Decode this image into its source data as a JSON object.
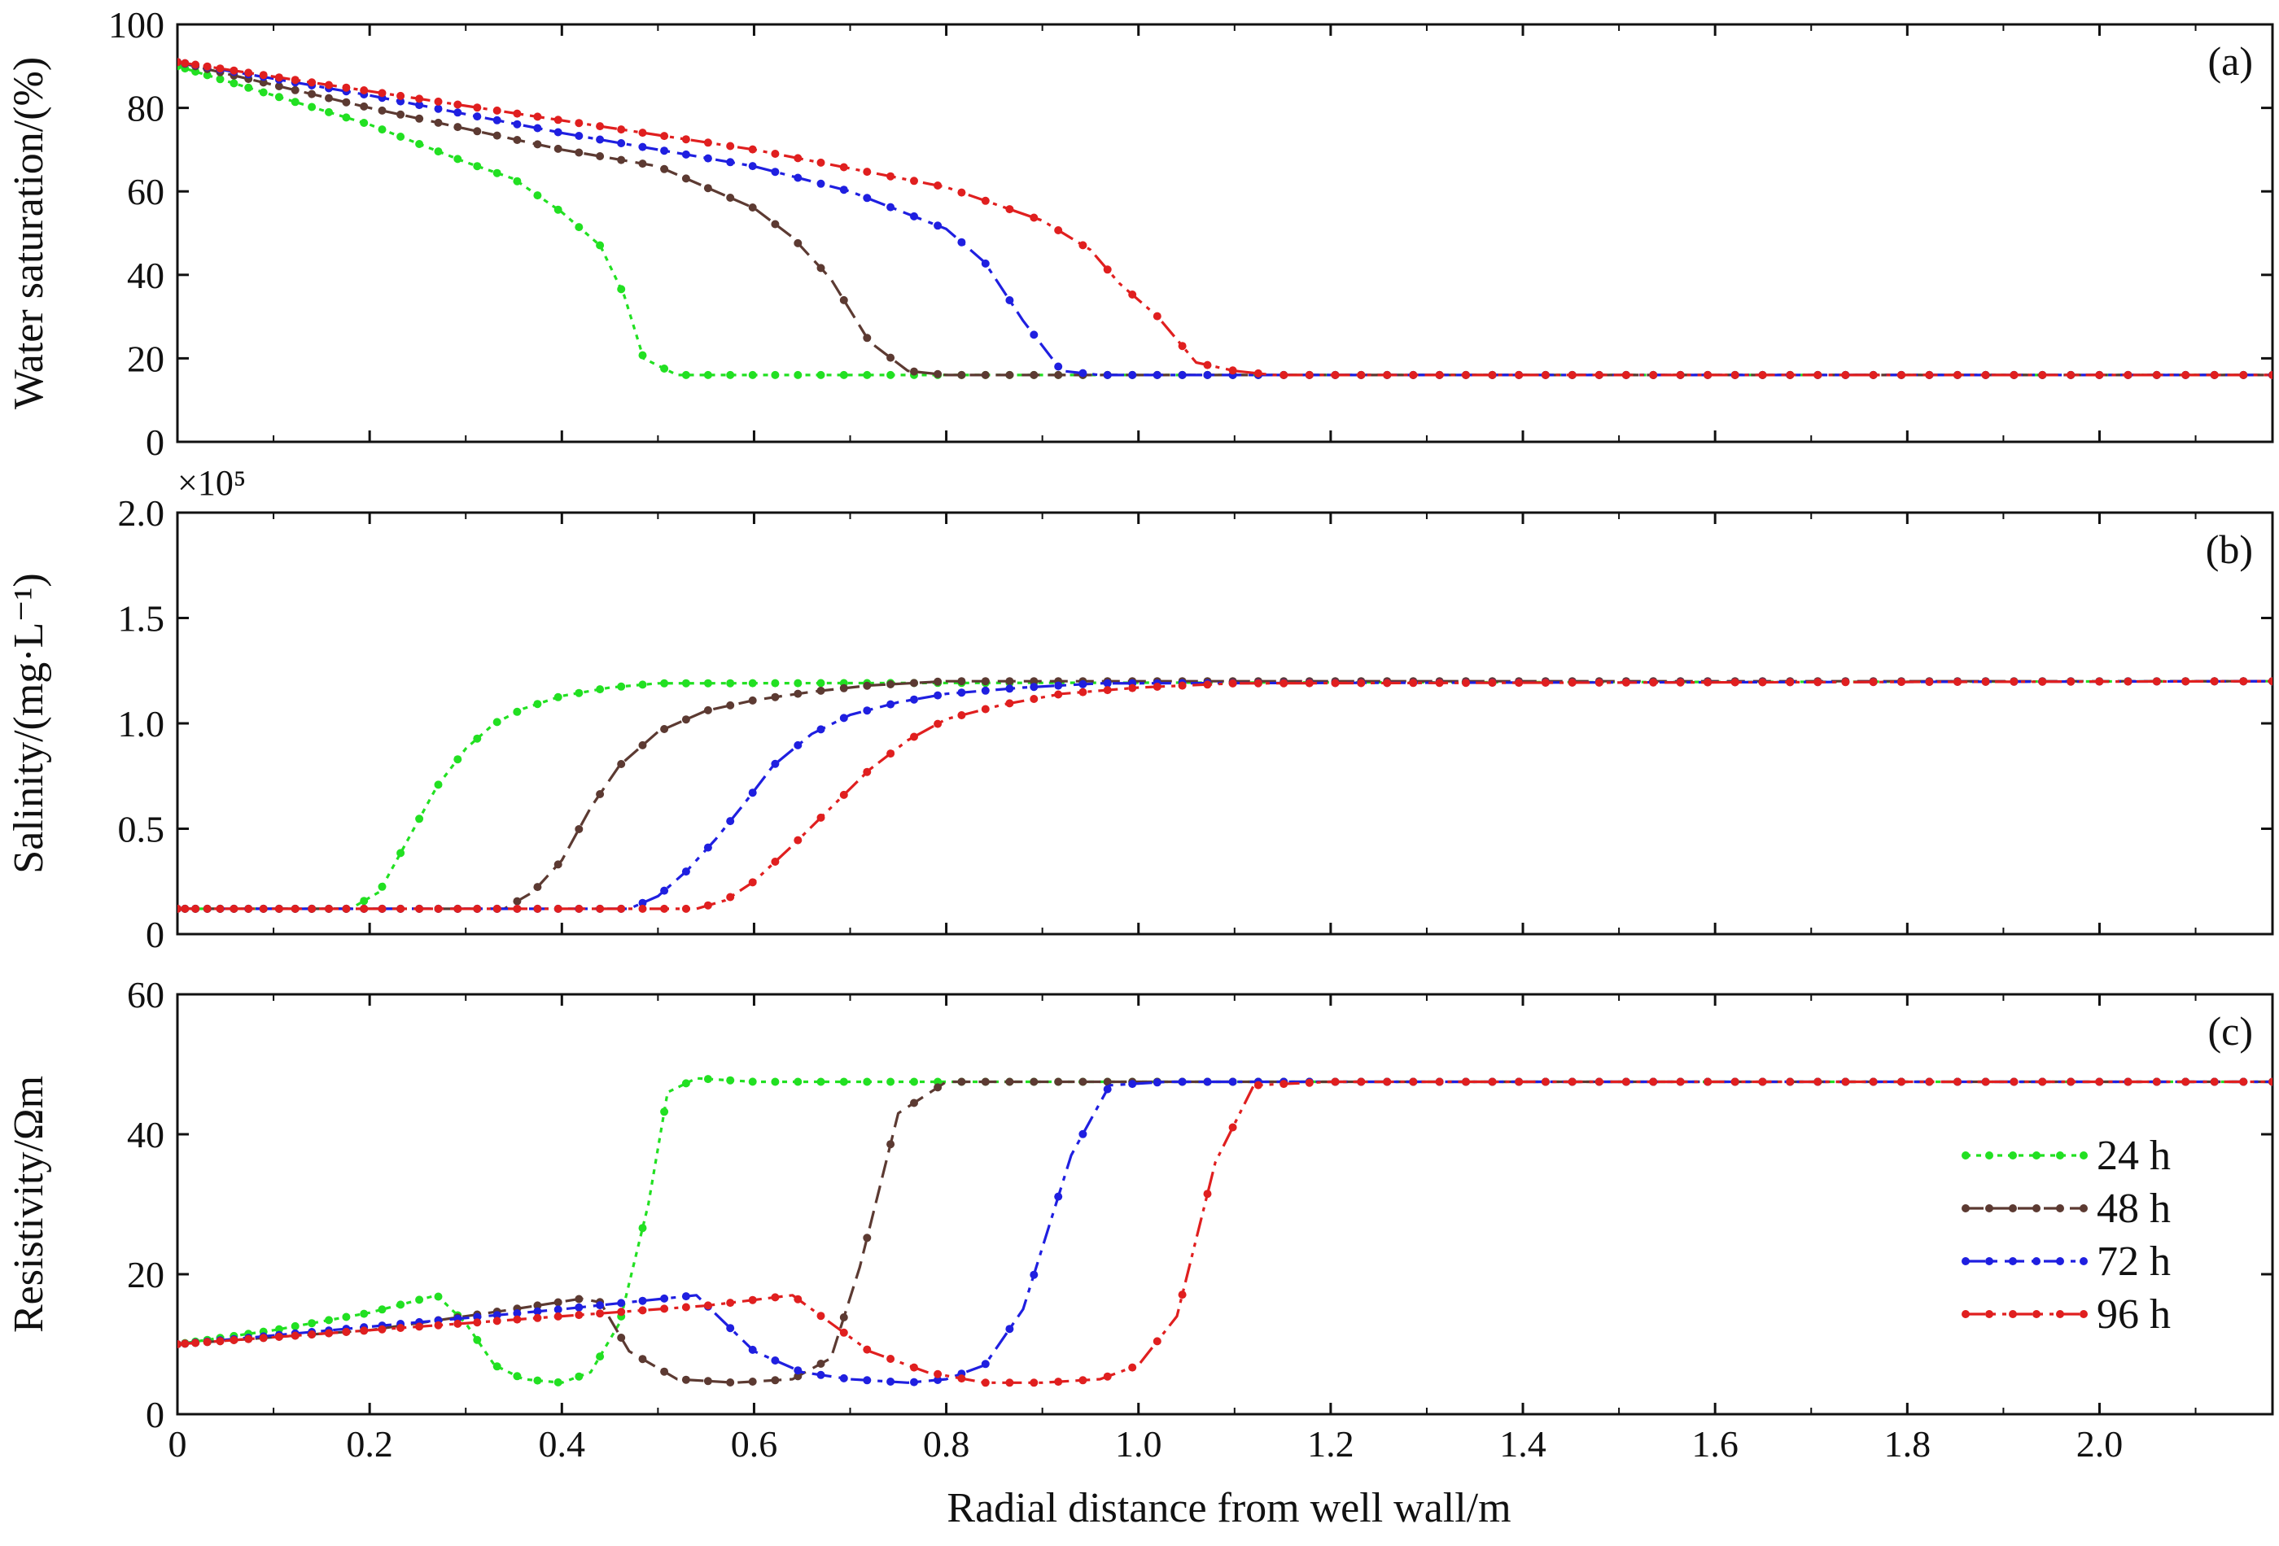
{
  "chart_data": {
    "type": "line",
    "xlabel": "Radial distance from well wall/m",
    "xlim": [
      0,
      2.18
    ],
    "xticks": [
      0,
      0.2,
      0.4,
      0.6,
      0.8,
      1.0,
      1.2,
      1.4,
      1.6,
      1.8,
      2.0
    ],
    "xtick_labels": [
      "0",
      "0.2",
      "0.4",
      "0.6",
      "0.8",
      "1.0",
      "1.2",
      "1.4",
      "1.6",
      "1.8",
      "2.0"
    ],
    "legend": {
      "placement": "lower-right of panel (c)",
      "entries": [
        {
          "label": "24 h",
          "color": "#22e022",
          "dash": "dotted"
        },
        {
          "label": "48 h",
          "color": "#5c3a32",
          "dash": "dashed"
        },
        {
          "label": "72 h",
          "color": "#1f1fe0",
          "dash": "dash-dot"
        },
        {
          "label": "96 h",
          "color": "#e01f1f",
          "dash": "dash-dot-dot"
        }
      ]
    },
    "panels": [
      {
        "id": "a",
        "tag": "(a)",
        "ylabel": "Water saturation/(%)",
        "ylim": [
          0,
          100
        ],
        "yticks": [
          0,
          20,
          40,
          60,
          80,
          100
        ],
        "ytick_labels": [
          "0",
          "20",
          "40",
          "60",
          "80",
          "100"
        ],
        "scale_note": "",
        "series": [
          {
            "name": "24 h",
            "x": [
              0,
              0.1,
              0.2,
              0.3,
              0.35,
              0.4,
              0.44,
              0.465,
              0.485,
              0.52,
              2.18
            ],
            "y": [
              90,
              83,
              76,
              67,
              63,
              55,
              47,
              35,
              20,
              16,
              16
            ]
          },
          {
            "name": "48 h",
            "x": [
              0,
              0.2,
              0.4,
              0.5,
              0.6,
              0.64,
              0.68,
              0.72,
              0.76,
              0.8,
              2.18
            ],
            "y": [
              91,
              80,
              70,
              66,
              56,
              49,
              39,
              24,
              17,
              16,
              16
            ]
          },
          {
            "name": "72 h",
            "x": [
              0,
              0.2,
              0.4,
              0.6,
              0.7,
              0.8,
              0.84,
              0.88,
              0.92,
              0.96,
              1.0,
              2.18
            ],
            "y": [
              91,
              83,
              74,
              66,
              60,
              51,
              43,
              29,
              17,
              16,
              16,
              16
            ]
          },
          {
            "name": "96 h",
            "x": [
              0,
              0.2,
              0.4,
              0.6,
              0.8,
              0.9,
              0.95,
              0.98,
              1.02,
              1.06,
              1.1,
              1.14,
              2.18
            ],
            "y": [
              91,
              84,
              77,
              70,
              61,
              53,
              46,
              38,
              30,
              19,
              17,
              16,
              16
            ]
          }
        ]
      },
      {
        "id": "b",
        "tag": "(b)",
        "ylabel": "Salinity/(mg·L⁻¹)",
        "ylim": [
          0,
          2.0
        ],
        "yticks": [
          0,
          0.5,
          1.0,
          1.5,
          2.0
        ],
        "ytick_labels": [
          "0",
          "0.5",
          "1.0",
          "1.5",
          "2.0"
        ],
        "scale_note": "×10⁵",
        "series": [
          {
            "name": "24 h",
            "x": [
              0,
              0.18,
              0.21,
              0.24,
              0.27,
              0.3,
              0.33,
              0.36,
              0.4,
              0.45,
              0.5,
              2.18
            ],
            "y": [
              0.12,
              0.12,
              0.2,
              0.45,
              0.7,
              0.88,
              1.0,
              1.07,
              1.13,
              1.17,
              1.19,
              1.2
            ]
          },
          {
            "name": "48 h",
            "x": [
              0,
              0.34,
              0.37,
              0.4,
              0.43,
              0.46,
              0.5,
              0.55,
              0.6,
              0.66,
              0.72,
              0.8,
              2.18
            ],
            "y": [
              0.12,
              0.12,
              0.2,
              0.35,
              0.6,
              0.8,
              0.96,
              1.06,
              1.11,
              1.15,
              1.18,
              1.2,
              1.2
            ]
          },
          {
            "name": "72 h",
            "x": [
              0,
              0.47,
              0.5,
              0.53,
              0.56,
              0.59,
              0.62,
              0.66,
              0.7,
              0.75,
              0.8,
              0.88,
              0.96,
              2.18
            ],
            "y": [
              0.12,
              0.12,
              0.18,
              0.3,
              0.45,
              0.62,
              0.8,
              0.95,
              1.04,
              1.1,
              1.14,
              1.17,
              1.19,
              1.2
            ]
          },
          {
            "name": "96 h",
            "x": [
              0,
              0.54,
              0.57,
              0.6,
              0.64,
              0.68,
              0.72,
              0.76,
              0.8,
              0.86,
              0.92,
              1.0,
              1.1,
              2.18
            ],
            "y": [
              0.12,
              0.12,
              0.16,
              0.25,
              0.42,
              0.6,
              0.78,
              0.92,
              1.02,
              1.09,
              1.14,
              1.17,
              1.19,
              1.2
            ]
          }
        ]
      },
      {
        "id": "c",
        "tag": "(c)",
        "ylabel": "Resistivity/Ωm",
        "ylim": [
          0,
          60
        ],
        "yticks": [
          0,
          20,
          40,
          60
        ],
        "ytick_labels": [
          "0",
          "20",
          "40",
          "60"
        ],
        "scale_note": "",
        "series": [
          {
            "name": "24 h",
            "x": [
              0,
              0.1,
              0.2,
              0.27,
              0.3,
              0.33,
              0.36,
              0.4,
              0.43,
              0.46,
              0.49,
              0.51,
              0.54,
              0.6,
              2.18
            ],
            "y": [
              10,
              12,
              14.5,
              17,
              13,
              7,
              5,
              4.5,
              6,
              13,
              30,
              46,
              48,
              47.5,
              47.5
            ]
          },
          {
            "name": "48 h",
            "x": [
              0,
              0.2,
              0.35,
              0.42,
              0.44,
              0.47,
              0.52,
              0.58,
              0.64,
              0.68,
              0.71,
              0.75,
              0.8,
              0.9,
              2.18
            ],
            "y": [
              10,
              12,
              15,
              16.5,
              16,
              9,
              5,
              4.5,
              5,
              8,
              21,
              43,
              47.5,
              47.5,
              47.5
            ]
          },
          {
            "name": "72 h",
            "x": [
              0,
              0.2,
              0.4,
              0.54,
              0.57,
              0.6,
              0.65,
              0.7,
              0.76,
              0.8,
              0.84,
              0.88,
              0.93,
              0.97,
              1.03,
              2.18
            ],
            "y": [
              10,
              12.5,
              15,
              17,
              13,
              9,
              6,
              5,
              4.5,
              5,
              7,
              15,
              37,
              47,
              47.5,
              47.5
            ]
          },
          {
            "name": "96 h",
            "x": [
              0,
              0.2,
              0.4,
              0.55,
              0.64,
              0.67,
              0.72,
              0.78,
              0.84,
              0.9,
              0.96,
              1.0,
              1.04,
              1.08,
              1.12,
              1.2,
              2.18
            ],
            "y": [
              10,
              12,
              14,
              15.5,
              17,
              14,
              9,
              6,
              4.5,
              4.5,
              5,
              7,
              14,
              36,
              47,
              47.5,
              47.5
            ]
          }
        ]
      }
    ]
  }
}
